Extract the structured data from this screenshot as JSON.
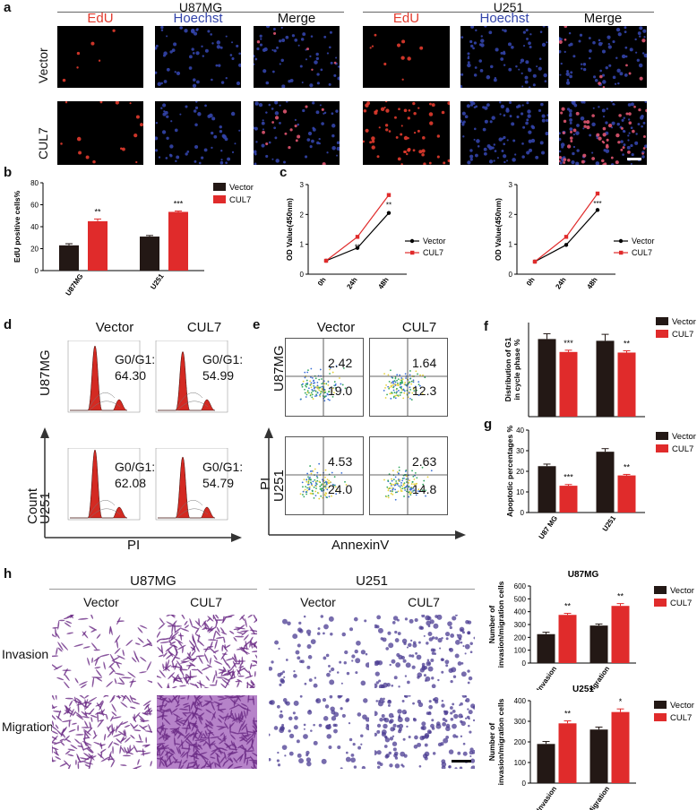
{
  "panels": {
    "a": "a",
    "b": "b",
    "c": "c",
    "d": "d",
    "e": "e",
    "f": "f",
    "g": "g",
    "h": "h"
  },
  "panel_a": {
    "groups": [
      "U87MG",
      "U251"
    ],
    "channels": [
      "EdU",
      "Hoechst",
      "Merge"
    ],
    "rows": [
      "Vector",
      "CUL7"
    ],
    "colors": {
      "edu": "#e23b2e",
      "hoechst": "#3344aa"
    }
  },
  "panel_d": {
    "cols": [
      "Vector",
      "CUL7"
    ],
    "rows": [
      "U87MG",
      "U251"
    ],
    "values": [
      [
        "G0/G1:",
        "64.30",
        "G0/G1:",
        "54.99"
      ],
      [
        "G0/G1:",
        "62.08",
        "G0/G1:",
        "54.79"
      ]
    ],
    "xlabel": "PI",
    "ylabel": "Count"
  },
  "panel_e": {
    "cols": [
      "Vector",
      "CUL7"
    ],
    "rows": [
      "U87MG",
      "U251"
    ],
    "quadrants": [
      [
        {
          "ur": "2.42",
          "lr": "19.0"
        },
        {
          "ur": "1.64",
          "lr": "12.3"
        }
      ],
      [
        {
          "ur": "4.53",
          "lr": "24.0"
        },
        {
          "ur": "2.63",
          "lr": "14.8"
        }
      ]
    ],
    "xlabel": "AnnexinV",
    "ylabel": "PI"
  },
  "panel_h": {
    "groups": [
      "U87MG",
      "U251"
    ],
    "cols": [
      "Vector",
      "CUL7",
      "Vector",
      "CUL7"
    ],
    "rows": [
      "Invasion",
      "Migration"
    ]
  },
  "chart_data": [
    {
      "id": "b",
      "type": "bar",
      "categories": [
        "U87MG",
        "U251"
      ],
      "series": [
        {
          "name": "Vector",
          "values": [
            23,
            31
          ],
          "errors": [
            1.5,
            1
          ],
          "color": "#231815"
        },
        {
          "name": "CUL7",
          "values": [
            45,
            53.5
          ],
          "errors": [
            2,
            0.8
          ],
          "color": "#e02b2b"
        }
      ],
      "annotations": [
        "**",
        "***"
      ],
      "ylabel": "EdU positive cells%",
      "ylim": [
        0,
        80
      ],
      "yticks": [
        0,
        20,
        40,
        60,
        80
      ],
      "legend": "top-right"
    },
    {
      "id": "c1",
      "type": "line",
      "x": [
        "0h",
        "24h",
        "48h"
      ],
      "series": [
        {
          "name": "Vector",
          "values": [
            0.45,
            0.88,
            2.05
          ],
          "color": "#000000"
        },
        {
          "name": "CUL7",
          "values": [
            0.45,
            1.25,
            2.65
          ],
          "color": "#e02b2b"
        }
      ],
      "annotations": [
        "",
        "**",
        "**"
      ],
      "ylabel": "OD Value(450nm)",
      "xlabel": "U251",
      "ylim": [
        0,
        3
      ],
      "yticks": [
        0,
        1,
        2,
        3
      ],
      "legend": "right"
    },
    {
      "id": "c2",
      "type": "line",
      "x": [
        "0h",
        "24h",
        "48h"
      ],
      "series": [
        {
          "name": "Vector",
          "values": [
            0.42,
            0.98,
            2.15
          ],
          "color": "#000000"
        },
        {
          "name": "CUL7",
          "values": [
            0.42,
            1.25,
            2.7
          ],
          "color": "#e02b2b"
        }
      ],
      "annotations": [
        "",
        "*",
        "***"
      ],
      "ylabel": "OD Value(450nm)",
      "xlabel": "U87MG",
      "ylim": [
        0,
        3
      ],
      "yticks": [
        0,
        1,
        2,
        3
      ],
      "legend": "right"
    },
    {
      "id": "f",
      "type": "bar",
      "categories": [
        "",
        ""
      ],
      "series": [
        {
          "name": "Vector",
          "values": [
            66,
            64.5
          ],
          "errors": [
            4.5,
            5.5
          ],
          "color": "#231815"
        },
        {
          "name": "CUL7",
          "values": [
            55,
            54.5
          ],
          "errors": [
            1.5,
            1.5
          ],
          "color": "#e02b2b"
        }
      ],
      "annotations": [
        "***",
        "**"
      ],
      "ylabel": "Distribution of G1 in cycle phase %",
      "ylim": [
        0,
        80
      ],
      "yticks": [],
      "legend": "top-right"
    },
    {
      "id": "g",
      "type": "bar",
      "categories": [
        "U87 MG",
        "U251"
      ],
      "series": [
        {
          "name": "Vector",
          "values": [
            22.5,
            29.5
          ],
          "errors": [
            1,
            1.5
          ],
          "color": "#231815"
        },
        {
          "name": "CUL7",
          "values": [
            13,
            18
          ],
          "errors": [
            0.6,
            0.5
          ],
          "color": "#e02b2b"
        }
      ],
      "annotations": [
        "***",
        "**"
      ],
      "ylabel": "Apoptotic percentages %",
      "ylim": [
        0,
        40
      ],
      "yticks": [
        0,
        10,
        20,
        30,
        40
      ],
      "legend": "top-right"
    },
    {
      "id": "h1",
      "type": "bar",
      "categories": [
        "Invasion",
        "Migration"
      ],
      "series": [
        {
          "name": "Vector",
          "values": [
            225,
            292
          ],
          "errors": [
            15,
            12
          ],
          "color": "#231815"
        },
        {
          "name": "CUL7",
          "values": [
            375,
            445
          ],
          "errors": [
            12,
            18
          ],
          "color": "#e02b2b"
        }
      ],
      "annotations": [
        "**",
        "**"
      ],
      "title": "U87MG",
      "ylabel": "Number of invasion/migration cells",
      "ylim": [
        0,
        600
      ],
      "yticks": [
        0,
        100,
        200,
        300,
        400,
        500,
        600
      ],
      "legend": "top-right"
    },
    {
      "id": "h2",
      "type": "bar",
      "categories": [
        "Invasion",
        "Migration"
      ],
      "series": [
        {
          "name": "Vector",
          "values": [
            190,
            260
          ],
          "errors": [
            12,
            12
          ],
          "color": "#231815"
        },
        {
          "name": "CUL7",
          "values": [
            290,
            345
          ],
          "errors": [
            12,
            15
          ],
          "color": "#e02b2b"
        }
      ],
      "annotations": [
        "**",
        "*"
      ],
      "title": "U251",
      "ylabel": "Number of invasion/migration cells",
      "ylim": [
        0,
        400
      ],
      "yticks": [
        0,
        100,
        200,
        300,
        400
      ],
      "legend": "top-right"
    }
  ]
}
